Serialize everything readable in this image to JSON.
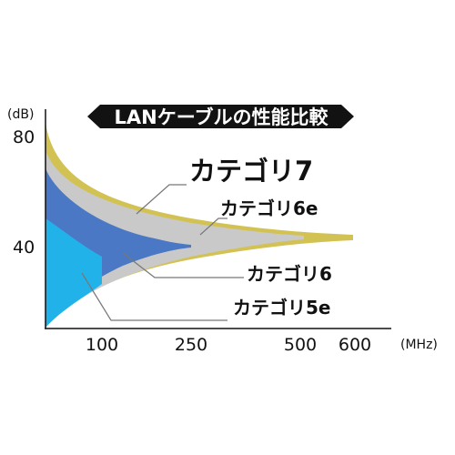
{
  "chart_data": {
    "type": "area",
    "title": "LANケーブルの性能比較",
    "ylabel_unit": "(dB)",
    "xlabel_unit": "(MHz)",
    "y_ticks": [
      "80",
      "40"
    ],
    "x_ticks": [
      "100",
      "250",
      "500",
      "600"
    ],
    "series": [
      {
        "name": "カテゴリ7",
        "max_mhz": 600,
        "color": "#d2c253"
      },
      {
        "name": "カテゴリ6e",
        "max_mhz": 500,
        "color": "#c9c9c9"
      },
      {
        "name": "カテゴリ6",
        "max_mhz": 250,
        "color": "#4a78c4"
      },
      {
        "name": "カテゴリ5e",
        "max_mhz": 100,
        "color": "#22b2ea"
      }
    ],
    "grid": false,
    "legend": "callouts"
  }
}
